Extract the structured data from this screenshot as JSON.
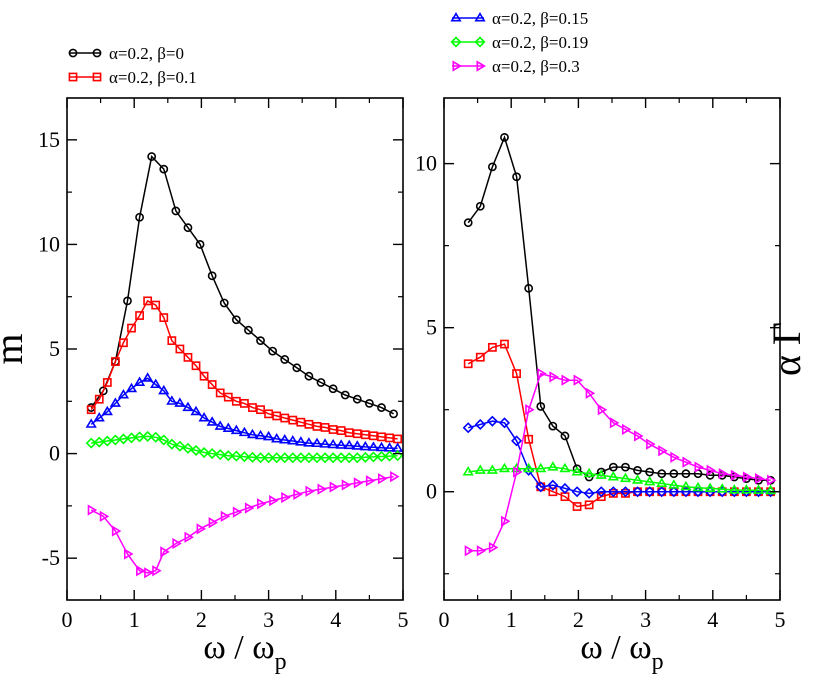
{
  "chart_data": [
    {
      "type": "line",
      "title": "",
      "xlabel": "ω / ω",
      "xlabel_sub": "p",
      "ylabel": "m",
      "xlim": [
        0,
        5
      ],
      "ylim": [
        -7,
        17
      ],
      "xticks": [
        0,
        1,
        2,
        3,
        4,
        5
      ],
      "xtick_labels": [
        "0",
        "1",
        "2",
        "3",
        "4",
        "5"
      ],
      "yticks": [
        -5,
        0,
        5,
        10,
        15
      ],
      "ytick_labels": [
        "-5",
        "0",
        "5",
        "10",
        "15"
      ],
      "grid": false,
      "legend_position": "top-left-outside",
      "legend": [
        {
          "label": "α=0.2, β=0",
          "series": 0
        },
        {
          "label": "α=0.2, β=0.1",
          "series": 1
        }
      ],
      "series": [
        {
          "name": "α=0.2, β=0",
          "color": "#000000",
          "marker": "circle",
          "x": [
            0.36,
            0.54,
            0.72,
            0.9,
            1.08,
            1.26,
            1.44,
            1.62,
            1.8,
            1.98,
            2.16,
            2.34,
            2.52,
            2.7,
            2.88,
            3.06,
            3.24,
            3.42,
            3.6,
            3.78,
            3.96,
            4.14,
            4.32,
            4.5,
            4.68,
            4.86
          ],
          "values": [
            2.2,
            3.0,
            4.4,
            7.3,
            11.3,
            14.2,
            13.6,
            11.6,
            10.8,
            10.0,
            8.5,
            7.2,
            6.4,
            5.9,
            5.4,
            4.9,
            4.5,
            4.1,
            3.7,
            3.4,
            3.1,
            2.8,
            2.6,
            2.4,
            2.2,
            1.9
          ]
        },
        {
          "name": "α=0.2, β=0.1",
          "color": "#ff0000",
          "marker": "square",
          "x": [
            0.36,
            0.48,
            0.6,
            0.72,
            0.84,
            0.96,
            1.08,
            1.2,
            1.32,
            1.44,
            1.56,
            1.68,
            1.8,
            1.92,
            2.04,
            2.16,
            2.28,
            2.4,
            2.52,
            2.64,
            2.76,
            2.88,
            3.0,
            3.12,
            3.24,
            3.36,
            3.48,
            3.6,
            3.72,
            3.84,
            3.96,
            4.08,
            4.2,
            4.32,
            4.44,
            4.56,
            4.68,
            4.8,
            4.92
          ],
          "values": [
            2.1,
            2.6,
            3.4,
            4.4,
            5.3,
            6.0,
            6.6,
            7.3,
            7.1,
            6.5,
            5.4,
            5.0,
            4.6,
            4.2,
            3.7,
            3.3,
            2.9,
            2.7,
            2.5,
            2.4,
            2.2,
            2.1,
            1.9,
            1.8,
            1.7,
            1.6,
            1.5,
            1.4,
            1.3,
            1.25,
            1.15,
            1.1,
            1.0,
            0.95,
            0.9,
            0.85,
            0.8,
            0.75,
            0.7
          ]
        },
        {
          "name": "α=0.2, β=0.15",
          "color": "#0000ff",
          "marker": "triangle-up",
          "x": [
            0.36,
            0.48,
            0.6,
            0.72,
            0.84,
            0.96,
            1.08,
            1.2,
            1.32,
            1.44,
            1.56,
            1.68,
            1.8,
            1.92,
            2.04,
            2.16,
            2.28,
            2.4,
            2.52,
            2.64,
            2.76,
            2.88,
            3.0,
            3.12,
            3.24,
            3.36,
            3.48,
            3.6,
            3.72,
            3.84,
            3.96,
            4.08,
            4.2,
            4.32,
            4.44,
            4.56,
            4.68,
            4.8,
            4.92
          ],
          "values": [
            1.4,
            1.7,
            2.0,
            2.4,
            2.8,
            3.1,
            3.4,
            3.6,
            3.3,
            3.0,
            2.5,
            2.4,
            2.2,
            2.0,
            1.7,
            1.5,
            1.3,
            1.2,
            1.1,
            1.0,
            0.9,
            0.85,
            0.8,
            0.7,
            0.65,
            0.6,
            0.55,
            0.5,
            0.48,
            0.45,
            0.42,
            0.4,
            0.38,
            0.35,
            0.32,
            0.3,
            0.28,
            0.26,
            0.25
          ]
        },
        {
          "name": "α=0.2, β=0.19",
          "color": "#00ff00",
          "marker": "diamond",
          "x": [
            0.36,
            0.48,
            0.6,
            0.72,
            0.84,
            0.96,
            1.08,
            1.2,
            1.32,
            1.44,
            1.56,
            1.68,
            1.8,
            1.92,
            2.04,
            2.16,
            2.28,
            2.4,
            2.52,
            2.64,
            2.76,
            2.88,
            3.0,
            3.12,
            3.24,
            3.36,
            3.48,
            3.6,
            3.72,
            3.84,
            3.96,
            4.08,
            4.2,
            4.32,
            4.44,
            4.56,
            4.68,
            4.8,
            4.92
          ],
          "values": [
            0.5,
            0.55,
            0.6,
            0.65,
            0.7,
            0.75,
            0.8,
            0.82,
            0.78,
            0.65,
            0.45,
            0.35,
            0.25,
            0.15,
            0.05,
            0.0,
            -0.05,
            -0.1,
            -0.12,
            -0.15,
            -0.18,
            -0.2,
            -0.2,
            -0.2,
            -0.2,
            -0.2,
            -0.2,
            -0.2,
            -0.2,
            -0.2,
            -0.2,
            -0.2,
            -0.2,
            -0.2,
            -0.18,
            -0.16,
            -0.14,
            -0.12,
            -0.1
          ]
        },
        {
          "name": "α=0.2, β=0.3",
          "color": "#ff00ff",
          "marker": "triangle-right",
          "x": [
            0.36,
            0.54,
            0.72,
            0.9,
            1.08,
            1.2,
            1.32,
            1.44,
            1.62,
            1.8,
            1.98,
            2.16,
            2.34,
            2.52,
            2.7,
            2.88,
            3.06,
            3.24,
            3.42,
            3.6,
            3.78,
            3.96,
            4.14,
            4.32,
            4.5,
            4.68,
            4.86
          ],
          "values": [
            -2.7,
            -3.0,
            -3.7,
            -4.8,
            -5.6,
            -5.7,
            -5.6,
            -4.7,
            -4.3,
            -4.0,
            -3.6,
            -3.3,
            -3.0,
            -2.8,
            -2.6,
            -2.4,
            -2.25,
            -2.1,
            -1.95,
            -1.8,
            -1.7,
            -1.6,
            -1.5,
            -1.4,
            -1.3,
            -1.2,
            -1.1
          ]
        }
      ]
    },
    {
      "type": "line",
      "title": "",
      "xlabel": "ω / ω",
      "xlabel_sub": "p",
      "ylabel": "α Γ",
      "ylabel_side": "right",
      "xlim": [
        0,
        5
      ],
      "ylim": [
        -3.3,
        12.0
      ],
      "xticks": [
        0,
        1,
        2,
        3,
        4,
        5
      ],
      "xtick_labels": [
        "0",
        "1",
        "2",
        "3",
        "4",
        "5"
      ],
      "yticks": [
        0,
        5,
        10
      ],
      "ytick_labels": [
        "0",
        "5",
        "10"
      ],
      "grid": false,
      "legend_position": "top-outside",
      "legend": [
        {
          "label": "α=0.2, β=0.15",
          "series": 2
        },
        {
          "label": "α=0.2, β=0.19",
          "series": 3
        },
        {
          "label": "α=0.2, β=0.3",
          "series": 4
        }
      ],
      "series": [
        {
          "name": "α=0.2, β=0",
          "color": "#000000",
          "marker": "circle",
          "x": [
            0.36,
            0.54,
            0.72,
            0.9,
            1.08,
            1.26,
            1.44,
            1.62,
            1.8,
            1.98,
            2.16,
            2.34,
            2.52,
            2.7,
            2.88,
            3.06,
            3.24,
            3.42,
            3.6,
            3.78,
            3.96,
            4.14,
            4.32,
            4.5,
            4.68,
            4.86
          ],
          "values": [
            8.2,
            8.7,
            9.9,
            10.8,
            9.6,
            6.2,
            2.6,
            2.0,
            1.7,
            0.7,
            0.45,
            0.6,
            0.75,
            0.75,
            0.65,
            0.6,
            0.55,
            0.55,
            0.55,
            0.55,
            0.5,
            0.5,
            0.45,
            0.4,
            0.35,
            0.35
          ]
        },
        {
          "name": "α=0.2, β=0.1",
          "color": "#ff0000",
          "marker": "square",
          "x": [
            0.36,
            0.54,
            0.72,
            0.9,
            1.08,
            1.26,
            1.44,
            1.62,
            1.8,
            1.98,
            2.16,
            2.34,
            2.52,
            2.7,
            2.88,
            3.06,
            3.24,
            3.42,
            3.6,
            3.78,
            3.96,
            4.14,
            4.32,
            4.5,
            4.68,
            4.86
          ],
          "values": [
            3.9,
            4.1,
            4.4,
            4.5,
            3.6,
            1.6,
            0.15,
            0.0,
            -0.15,
            -0.45,
            -0.4,
            -0.15,
            -0.05,
            -0.05,
            0.0,
            0.0,
            0.0,
            0.0,
            0.0,
            0.0,
            0.0,
            0.0,
            0.0,
            0.0,
            0.0,
            0.0
          ]
        },
        {
          "name": "α=0.2, β=0.15",
          "color": "#0000ff",
          "marker": "diamond",
          "x": [
            0.36,
            0.54,
            0.72,
            0.9,
            1.08,
            1.26,
            1.44,
            1.62,
            1.8,
            1.98,
            2.16,
            2.34,
            2.52,
            2.7,
            2.88,
            3.06,
            3.24,
            3.42,
            3.6,
            3.78,
            3.96,
            4.14,
            4.32,
            4.5,
            4.68,
            4.86
          ],
          "values": [
            1.95,
            2.05,
            2.15,
            2.1,
            1.55,
            0.65,
            0.15,
            0.2,
            0.1,
            0.0,
            -0.05,
            0.0,
            0.0,
            0.0,
            0.0,
            0.0,
            0.0,
            0.0,
            0.0,
            0.0,
            0.0,
            0.0,
            0.0,
            0.0,
            0.0,
            0.0
          ]
        },
        {
          "name": "α=0.2, β=0.19",
          "color": "#00ff00",
          "marker": "triangle-up",
          "x": [
            0.36,
            0.54,
            0.72,
            0.9,
            1.08,
            1.26,
            1.44,
            1.62,
            1.8,
            1.98,
            2.16,
            2.34,
            2.52,
            2.7,
            2.88,
            3.06,
            3.24,
            3.42,
            3.6,
            3.78,
            3.96,
            4.14,
            4.32,
            4.5,
            4.68,
            4.86
          ],
          "values": [
            0.6,
            0.65,
            0.65,
            0.7,
            0.7,
            0.7,
            0.7,
            0.75,
            0.7,
            0.6,
            0.55,
            0.5,
            0.45,
            0.4,
            0.35,
            0.3,
            0.25,
            0.2,
            0.15,
            0.12,
            0.1,
            0.08,
            0.05,
            0.05,
            0.04,
            0.03
          ]
        },
        {
          "name": "α=0.2, β=0.3",
          "color": "#ff00ff",
          "marker": "triangle-right",
          "x": [
            0.36,
            0.54,
            0.72,
            0.9,
            1.08,
            1.26,
            1.44,
            1.62,
            1.8,
            1.98,
            2.16,
            2.34,
            2.52,
            2.7,
            2.88,
            3.06,
            3.24,
            3.42,
            3.6,
            3.78,
            3.96,
            4.14,
            4.32,
            4.5,
            4.68,
            4.86
          ],
          "values": [
            -1.8,
            -1.8,
            -1.7,
            -0.9,
            0.6,
            2.5,
            3.6,
            3.5,
            3.4,
            3.4,
            3.0,
            2.5,
            2.1,
            1.9,
            1.7,
            1.45,
            1.25,
            1.05,
            0.9,
            0.75,
            0.65,
            0.55,
            0.5,
            0.45,
            0.4,
            0.35
          ]
        }
      ]
    }
  ]
}
